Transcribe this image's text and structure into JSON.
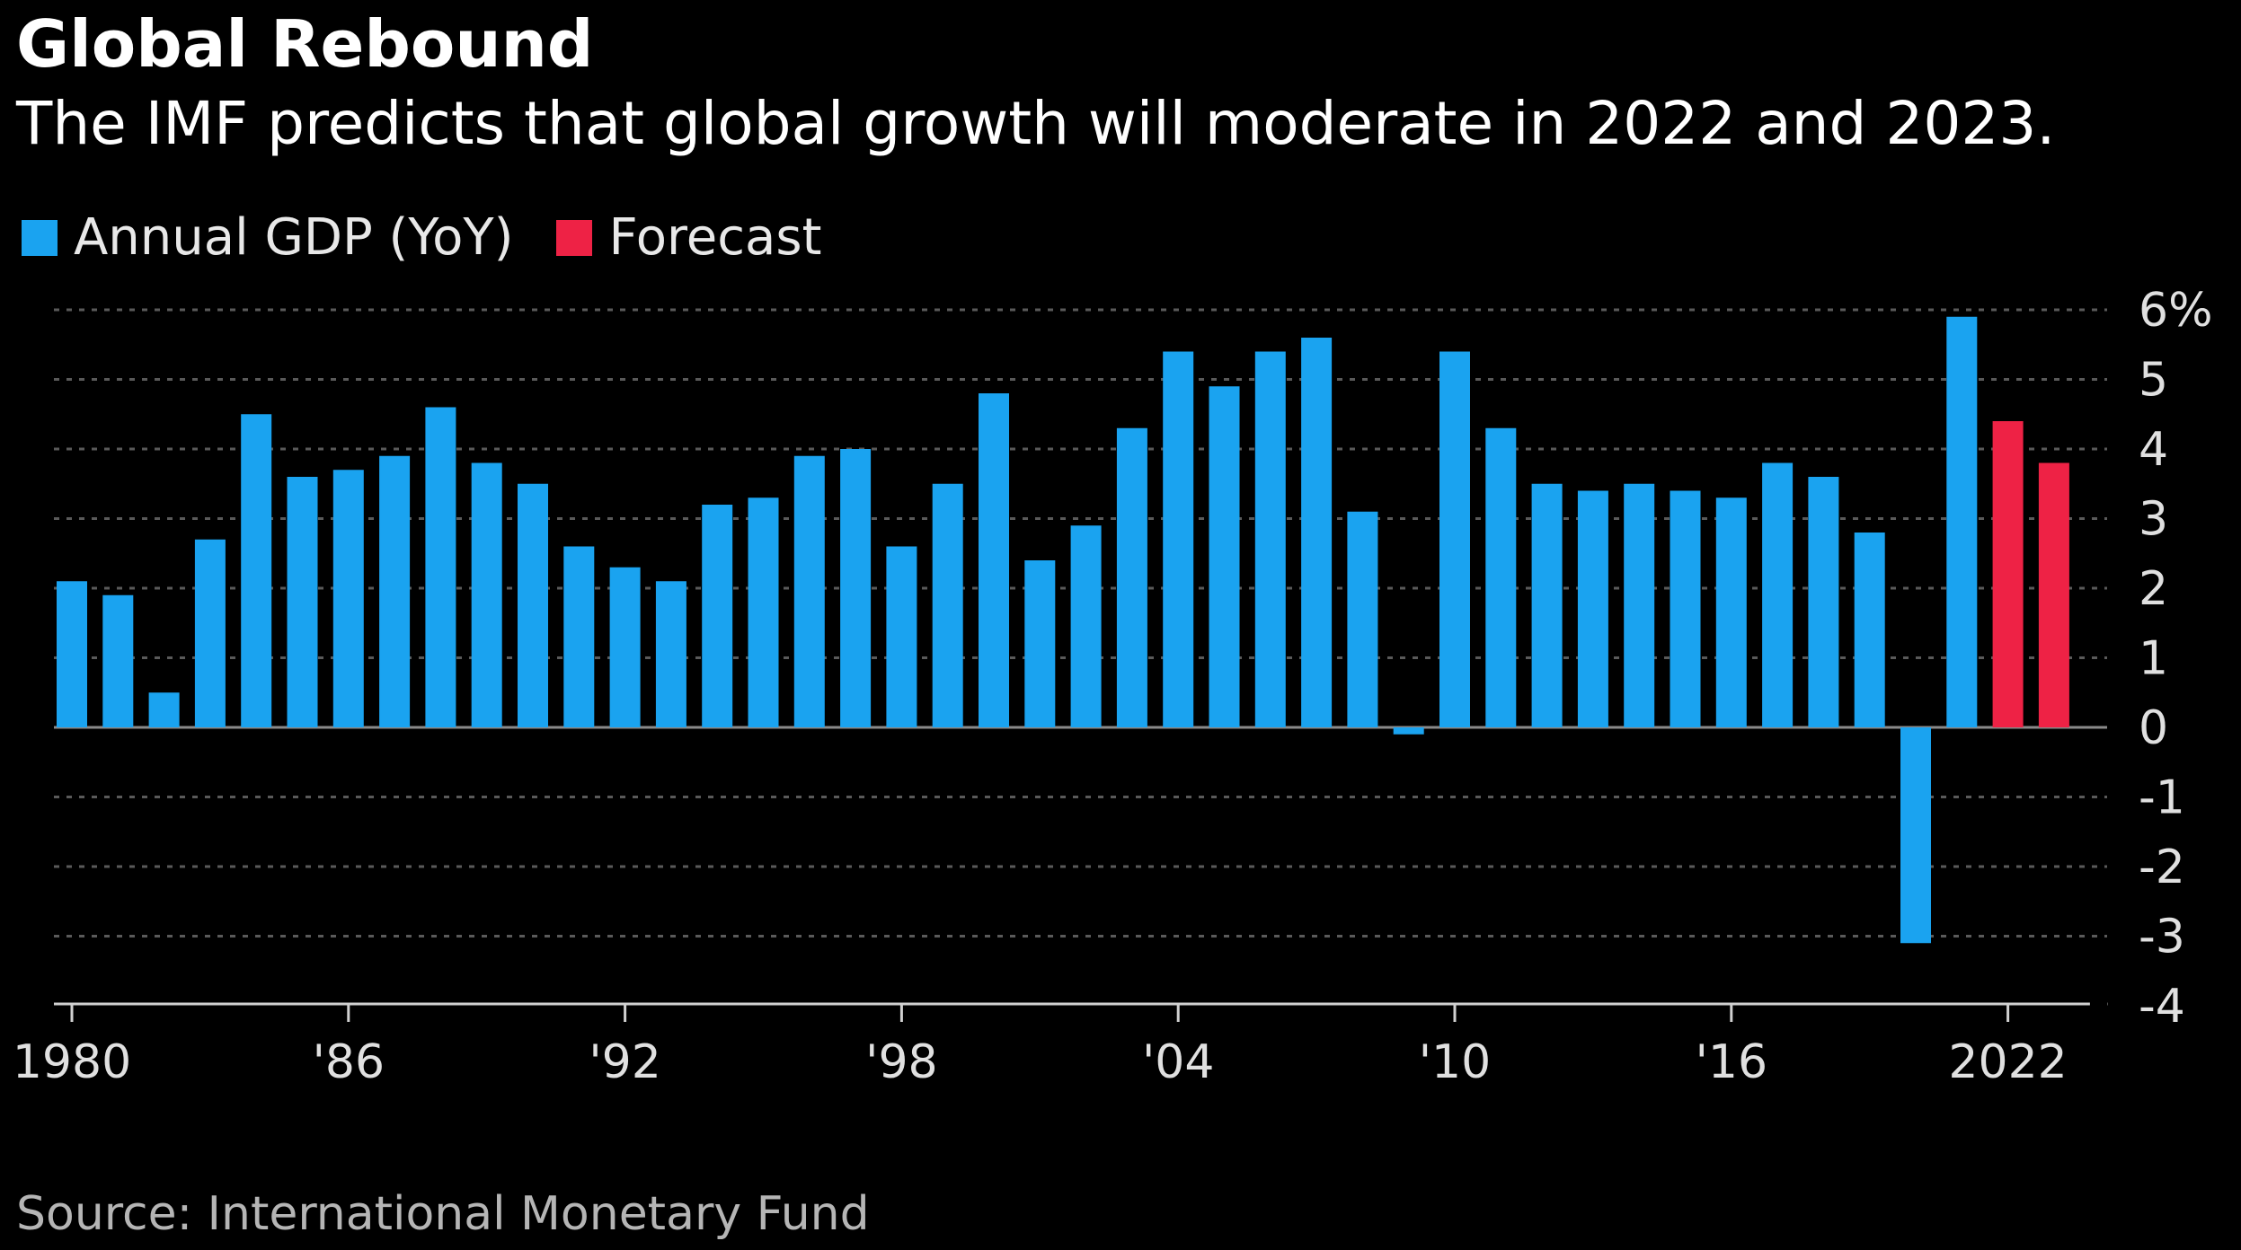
{
  "title": "Global Rebound",
  "subtitle": "The IMF predicts that global growth will moderate in 2022 and 2023.",
  "legend": [
    {
      "label": "Annual GDP (YoY)",
      "color": "#1aa3f0"
    },
    {
      "label": "Forecast",
      "color": "#ee2245"
    }
  ],
  "source": "Source: International Monetary Fund",
  "chart_data": {
    "type": "bar",
    "title": "Global Rebound",
    "subtitle": "The IMF predicts that global growth will moderate in 2022 and 2023.",
    "xlabel": "",
    "ylabel": "",
    "ylim": [
      -4,
      6
    ],
    "yticks": [
      "6%",
      "5",
      "4",
      "3",
      "2",
      "1",
      "0",
      "-1",
      "-2",
      "-3",
      "-4"
    ],
    "ytick_values": [
      6,
      5,
      4,
      3,
      2,
      1,
      0,
      -1,
      -2,
      -3,
      -4
    ],
    "xticks": [
      "1980",
      "'86",
      "'92",
      "'98",
      "'04",
      "'10",
      "'16",
      "2022"
    ],
    "xtick_years": [
      1980,
      1986,
      1992,
      1998,
      2004,
      2010,
      2016,
      2022
    ],
    "grid": true,
    "legend_position": "top-left",
    "series": [
      {
        "name": "Annual GDP (YoY)",
        "color": "#1aa3f0",
        "x": [
          1980,
          1981,
          1982,
          1983,
          1984,
          1985,
          1986,
          1987,
          1988,
          1989,
          1990,
          1991,
          1992,
          1993,
          1994,
          1995,
          1996,
          1997,
          1998,
          1999,
          2000,
          2001,
          2002,
          2003,
          2004,
          2005,
          2006,
          2007,
          2008,
          2009,
          2010,
          2011,
          2012,
          2013,
          2014,
          2015,
          2016,
          2017,
          2018,
          2019,
          2020,
          2021
        ],
        "values": [
          2.1,
          1.9,
          0.5,
          2.7,
          4.5,
          3.6,
          3.7,
          3.9,
          4.6,
          3.8,
          3.5,
          2.6,
          2.3,
          2.1,
          3.2,
          3.3,
          3.9,
          4.0,
          2.6,
          3.5,
          4.8,
          2.4,
          2.9,
          4.3,
          5.4,
          4.9,
          5.4,
          5.6,
          3.1,
          -0.1,
          5.4,
          4.3,
          3.5,
          3.4,
          3.5,
          3.4,
          3.3,
          3.8,
          3.6,
          2.8,
          -3.1,
          5.9
        ]
      },
      {
        "name": "Forecast",
        "color": "#ee2245",
        "x": [
          2022,
          2023
        ],
        "values": [
          4.4,
          3.8
        ]
      }
    ]
  }
}
